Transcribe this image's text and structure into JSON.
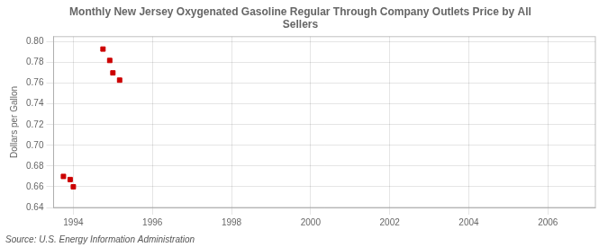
{
  "chart_data": {
    "type": "scatter",
    "title": "Monthly New Jersey Oxygenated Gasoline Regular Through Company Outlets Price by All\nSellers",
    "ylabel": "Dollars per Gallon",
    "annotation": "Source: U.S. Energy Information Administration",
    "x": [
      1993.75,
      1993.92,
      1994.0,
      1994.75,
      1994.92,
      1995.0,
      1995.17
    ],
    "values": [
      0.67,
      0.667,
      0.66,
      0.793,
      0.782,
      0.77,
      0.763
    ],
    "color": "#cc0000",
    "marker": "square",
    "grid": true,
    "xlim": [
      1993.5,
      2007.2
    ],
    "ylim": [
      0.64,
      0.805
    ],
    "xticks": [
      1994,
      1996,
      1998,
      2000,
      2002,
      2004,
      2006
    ],
    "yticks": [
      0.64,
      0.66,
      0.68,
      {
        "value": 0.7,
        "label": "0.70"
      },
      0.72,
      0.74,
      0.76,
      0.78,
      {
        "value": 0.8,
        "label": "0.80"
      }
    ]
  }
}
